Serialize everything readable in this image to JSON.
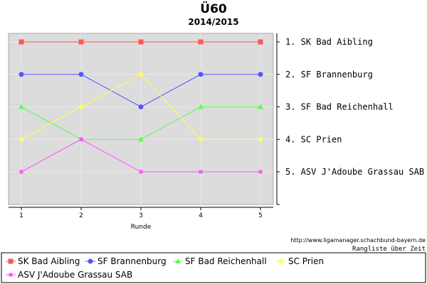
{
  "chart_data": {
    "type": "line",
    "title": "Ü60",
    "subtitle": "2014/2015",
    "xlabel": "Runde",
    "ylabel": "",
    "x": [
      1,
      2,
      3,
      4,
      5
    ],
    "ylim": [
      0,
      6
    ],
    "y_inverted": true,
    "grid": true,
    "legend_position": "bottom",
    "rank_labels": [
      "1. SK Bad Aibling",
      "2. SF Brannenburg",
      "3. SF Bad Reichenhall",
      "4. SC Prien",
      "5. ASV J'Adoube Grassau SAB"
    ],
    "series": [
      {
        "name": "SK Bad Aibling",
        "values": [
          1,
          1,
          1,
          1,
          1
        ],
        "color": "#ff5555",
        "marker": "square"
      },
      {
        "name": "SF Brannenburg",
        "values": [
          2,
          2,
          3,
          2,
          2
        ],
        "color": "#5555ff",
        "marker": "circle"
      },
      {
        "name": "SF Bad Reichenhall",
        "values": [
          3,
          4,
          4,
          3,
          3
        ],
        "color": "#55ff55",
        "marker": "triangle"
      },
      {
        "name": "SC Prien",
        "values": [
          4,
          3,
          2,
          4,
          4
        ],
        "color": "#ffff55",
        "marker": "diamond"
      },
      {
        "name": "ASV J'Adoube Grassau SAB",
        "values": [
          5,
          4,
          5,
          5,
          5
        ],
        "color": "#ff55ff",
        "marker": "small-square"
      }
    ],
    "source_url": "http://www.ligamanager.schachbund-bayern.de",
    "note": "Rangliste über Zeit"
  }
}
